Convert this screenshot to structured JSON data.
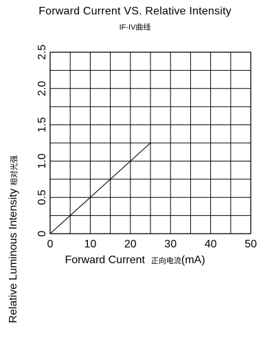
{
  "chart_data": {
    "type": "line",
    "title": "Forward Current VS. Relative Intensity",
    "subtitle": "IF-IV曲线",
    "xlabel": "Forward Current",
    "xlabel_cn": "正向电流",
    "xlabel_unit": "(mA)",
    "ylabel": "Relative Luminous Intensity",
    "ylabel_cn": "相对光强",
    "xlim": [
      0,
      50
    ],
    "ylim": [
      0,
      2.5
    ],
    "x_ticks": [
      0,
      10,
      20,
      30,
      40,
      50
    ],
    "x_tick_labels": [
      "0",
      "10",
      "20",
      "30",
      "40",
      "50"
    ],
    "y_ticks": [
      0,
      0.5,
      1.0,
      1.5,
      2.0,
      2.5
    ],
    "y_tick_labels": [
      "0",
      "0.5",
      "1.0",
      "1.5",
      "2.0",
      "2.5"
    ],
    "grid": true,
    "grid_x_step": 5,
    "grid_y_step": 0.25,
    "series": [
      {
        "x": [
          0,
          25
        ],
        "y": [
          0,
          1.25
        ],
        "color": "#000000"
      }
    ]
  }
}
